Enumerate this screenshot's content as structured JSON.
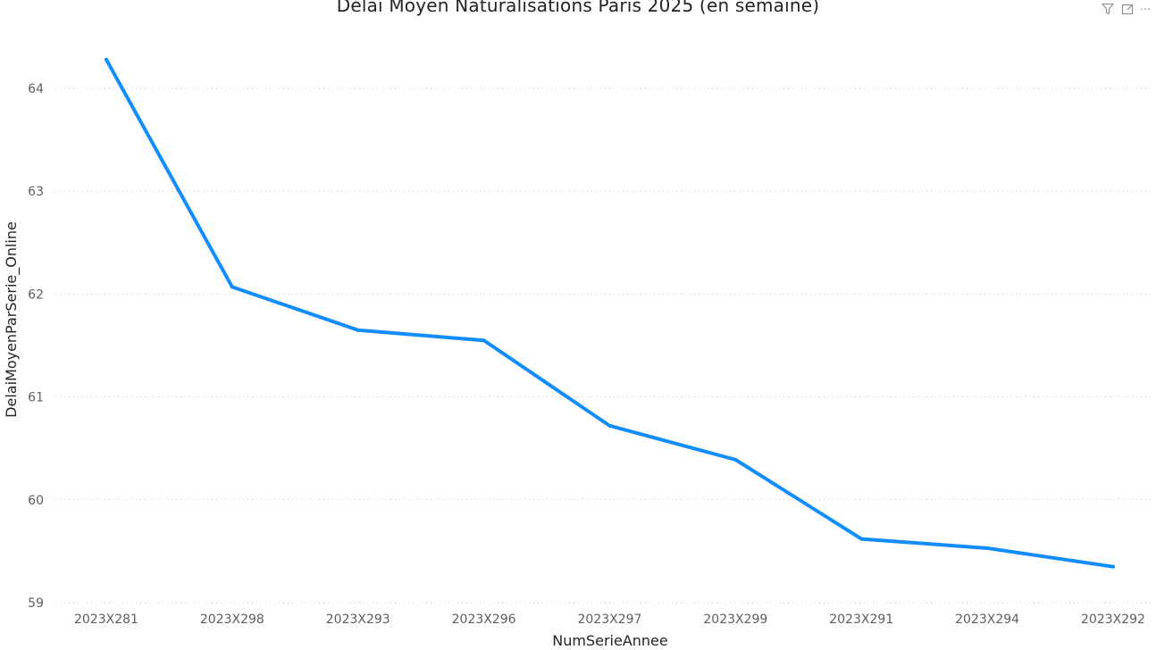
{
  "header": {
    "filter_icon": "filter-icon",
    "focus_icon": "focus-mode-icon",
    "more_label": "⋯"
  },
  "chart_data": {
    "type": "line",
    "title": "Délai Moyen Naturalisations Paris 2025 (en semaine)",
    "xlabel": "NumSerieAnnee",
    "ylabel": "DelaiMoyenParSerie_Online",
    "categories": [
      "2023X281",
      "2023X298",
      "2023X293",
      "2023X296",
      "2023X297",
      "2023X299",
      "2023X291",
      "2023X294",
      "2023X292"
    ],
    "series": [
      {
        "values": [
          64.28,
          62.07,
          61.65,
          61.55,
          60.72,
          60.39,
          59.62,
          59.53,
          59.35
        ],
        "color": "#118DFF"
      }
    ],
    "y_ticks": [
      59,
      60,
      61,
      62,
      63,
      64
    ],
    "ylim": [
      59,
      64.5
    ],
    "grid": true,
    "legend": "none"
  }
}
